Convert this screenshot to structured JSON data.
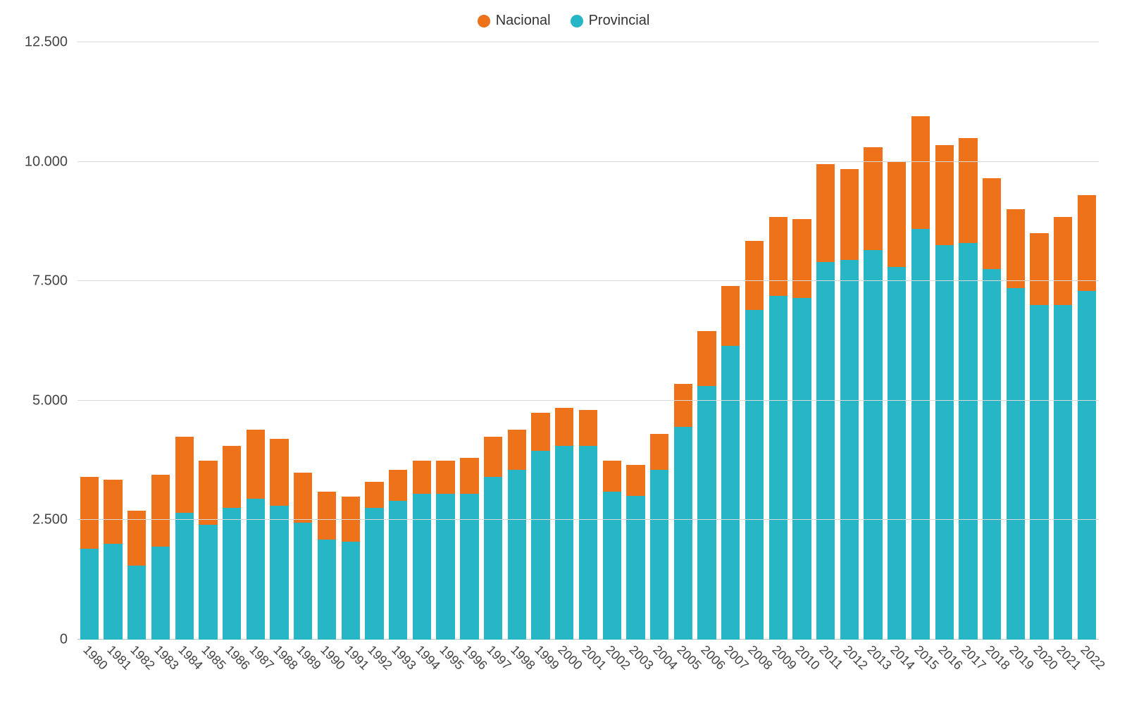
{
  "chart": {
    "type": "stacked-bar",
    "background_color": "#ffffff",
    "grid_color": "#d9d9d9",
    "axis_color": "#bfbfbf",
    "label_color": "#444444",
    "label_fontsize_pt": 15,
    "legend_fontsize_pt": 15,
    "bar_width_ratio": 0.78,
    "ylim": [
      0,
      12500
    ],
    "yticks": [
      0,
      2500,
      5000,
      7500,
      10000,
      12500
    ],
    "ytick_labels": [
      "0",
      "2.500",
      "5.000",
      "7.500",
      "10.000",
      "12.500"
    ],
    "categories": [
      "1980",
      "1981",
      "1982",
      "1983",
      "1984",
      "1985",
      "1986",
      "1987",
      "1988",
      "1989",
      "1990",
      "1991",
      "1992",
      "1993",
      "1994",
      "1995",
      "1996",
      "1997",
      "1998",
      "1999",
      "2000",
      "2001",
      "2002",
      "2003",
      "2004",
      "2005",
      "2006",
      "2007",
      "2008",
      "2009",
      "2010",
      "2011",
      "2012",
      "2013",
      "2014",
      "2015",
      "2016",
      "2017",
      "2018",
      "2019",
      "2020",
      "2021",
      "2022"
    ],
    "legend": [
      {
        "key": "nacional",
        "label": "Nacional",
        "color": "#ee7219"
      },
      {
        "key": "provincial",
        "label": "Provincial",
        "color": "#26b6c6"
      }
    ],
    "series": {
      "provincial": [
        1900,
        2000,
        1550,
        1950,
        2650,
        2400,
        2750,
        2950,
        2800,
        2450,
        2100,
        2050,
        2750,
        2900,
        3050,
        3050,
        3050,
        3400,
        3550,
        3950,
        4050,
        4050,
        3100,
        3000,
        3550,
        4450,
        5300,
        6150,
        6900,
        7200,
        7150,
        7900,
        7950,
        8150,
        7800,
        8600,
        8250,
        8300,
        7750,
        7350,
        7000,
        7000,
        7300
      ],
      "nacional": [
        1500,
        1350,
        1150,
        1500,
        1600,
        1350,
        1300,
        1450,
        1400,
        1050,
        1000,
        950,
        550,
        650,
        700,
        700,
        750,
        850,
        850,
        800,
        800,
        750,
        650,
        650,
        750,
        900,
        1150,
        1250,
        1450,
        1650,
        1650,
        2050,
        1900,
        2150,
        2200,
        2350,
        2100,
        2200,
        1900,
        1650,
        1500,
        1850,
        2000
      ]
    }
  }
}
